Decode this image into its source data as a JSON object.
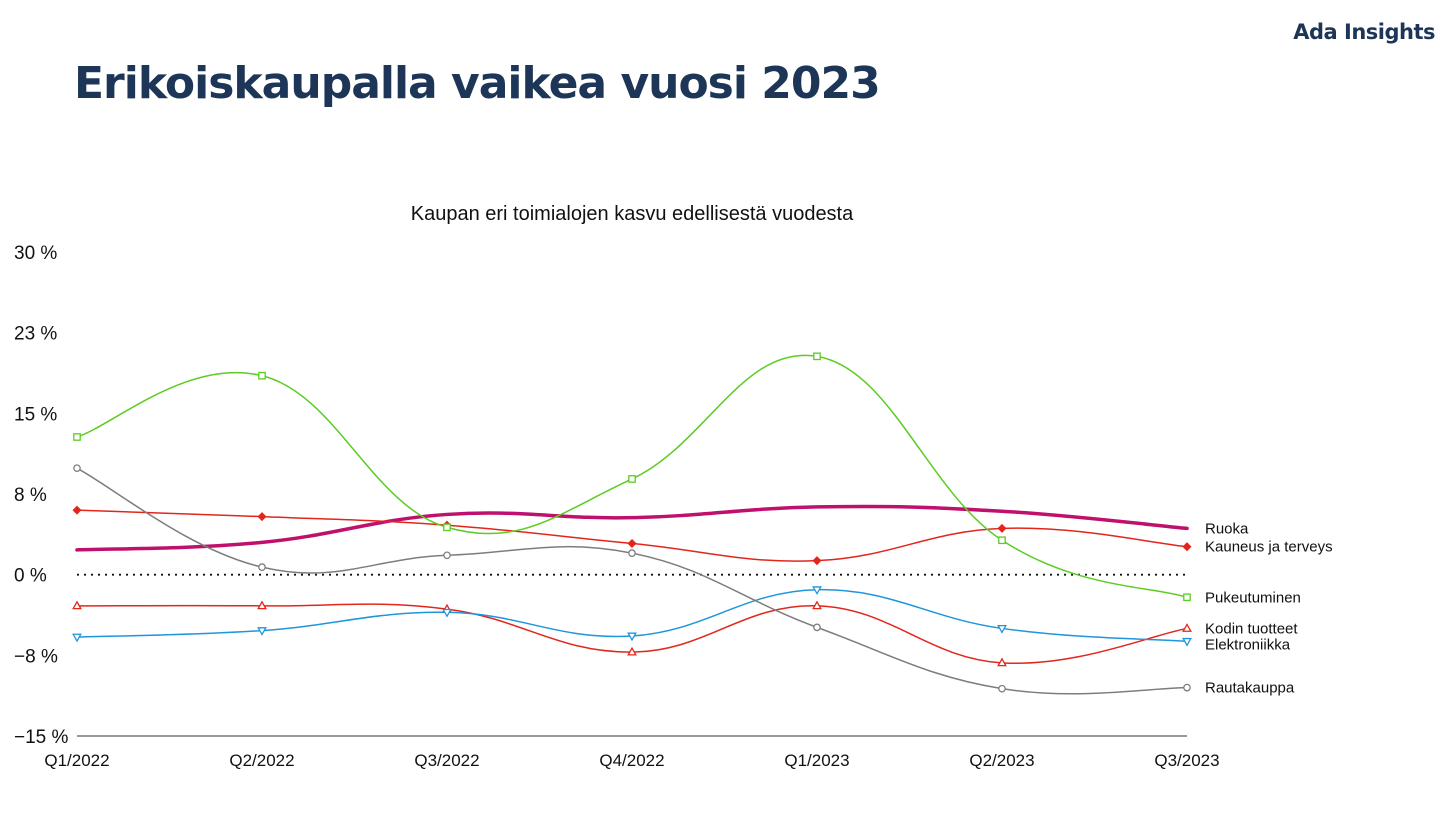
{
  "brand": "Ada Insights",
  "page_title": "Erikoiskaupalla vaikea vuosi 2023",
  "chart_data": {
    "type": "line",
    "title": "Kaupan eri toimialojen kasvu edellisestä vuodesta",
    "xlabel": "",
    "ylabel": "",
    "categories": [
      "Q1/2022",
      "Q2/2022",
      "Q3/2022",
      "Q4/2022",
      "Q1/2023",
      "Q2/2023",
      "Q3/2023"
    ],
    "ylim": [
      -15,
      30
    ],
    "yticks": [
      30,
      22.5,
      15,
      7.5,
      0,
      -7.5,
      -15
    ],
    "ytick_labels": [
      "30 %",
      "23 %",
      "15 %",
      "8 %",
      "0 %",
      "−8 %",
      "−15 %"
    ],
    "zero_line": "dotted",
    "legend": "labels at line ends (right)",
    "series": [
      {
        "name": "Ruoka",
        "color": "#c0106e",
        "marker": "none",
        "width": 3.5,
        "values": [
          2.3,
          3.0,
          5.6,
          5.3,
          6.3,
          5.9,
          4.3
        ]
      },
      {
        "name": "Kauneus ja terveys",
        "color": "#e3261b",
        "marker": "diamond",
        "width": 1.5,
        "values": [
          6.0,
          5.4,
          4.6,
          2.9,
          1.3,
          4.3,
          2.6
        ]
      },
      {
        "name": "Pukeutuminen",
        "color": "#5ccc22",
        "marker": "square",
        "width": 1.5,
        "values": [
          12.8,
          18.5,
          4.4,
          8.9,
          20.3,
          3.2,
          -2.1
        ]
      },
      {
        "name": "Kodin tuotteet",
        "color": "#e3261b",
        "marker": "triangle-up",
        "width": 1.5,
        "values": [
          -2.9,
          -2.9,
          -3.2,
          -7.2,
          -2.9,
          -8.2,
          -5.0
        ]
      },
      {
        "name": "Elektroniikka",
        "color": "#1f96dc",
        "marker": "triangle-down",
        "width": 1.5,
        "values": [
          -5.8,
          -5.2,
          -3.5,
          -5.7,
          -1.4,
          -5.0,
          -6.2
        ]
      },
      {
        "name": "Rautakauppa",
        "color": "#7d7d7d",
        "marker": "circle",
        "width": 1.5,
        "values": [
          9.9,
          0.7,
          1.8,
          2.0,
          -4.9,
          -10.6,
          -10.5
        ]
      }
    ]
  }
}
